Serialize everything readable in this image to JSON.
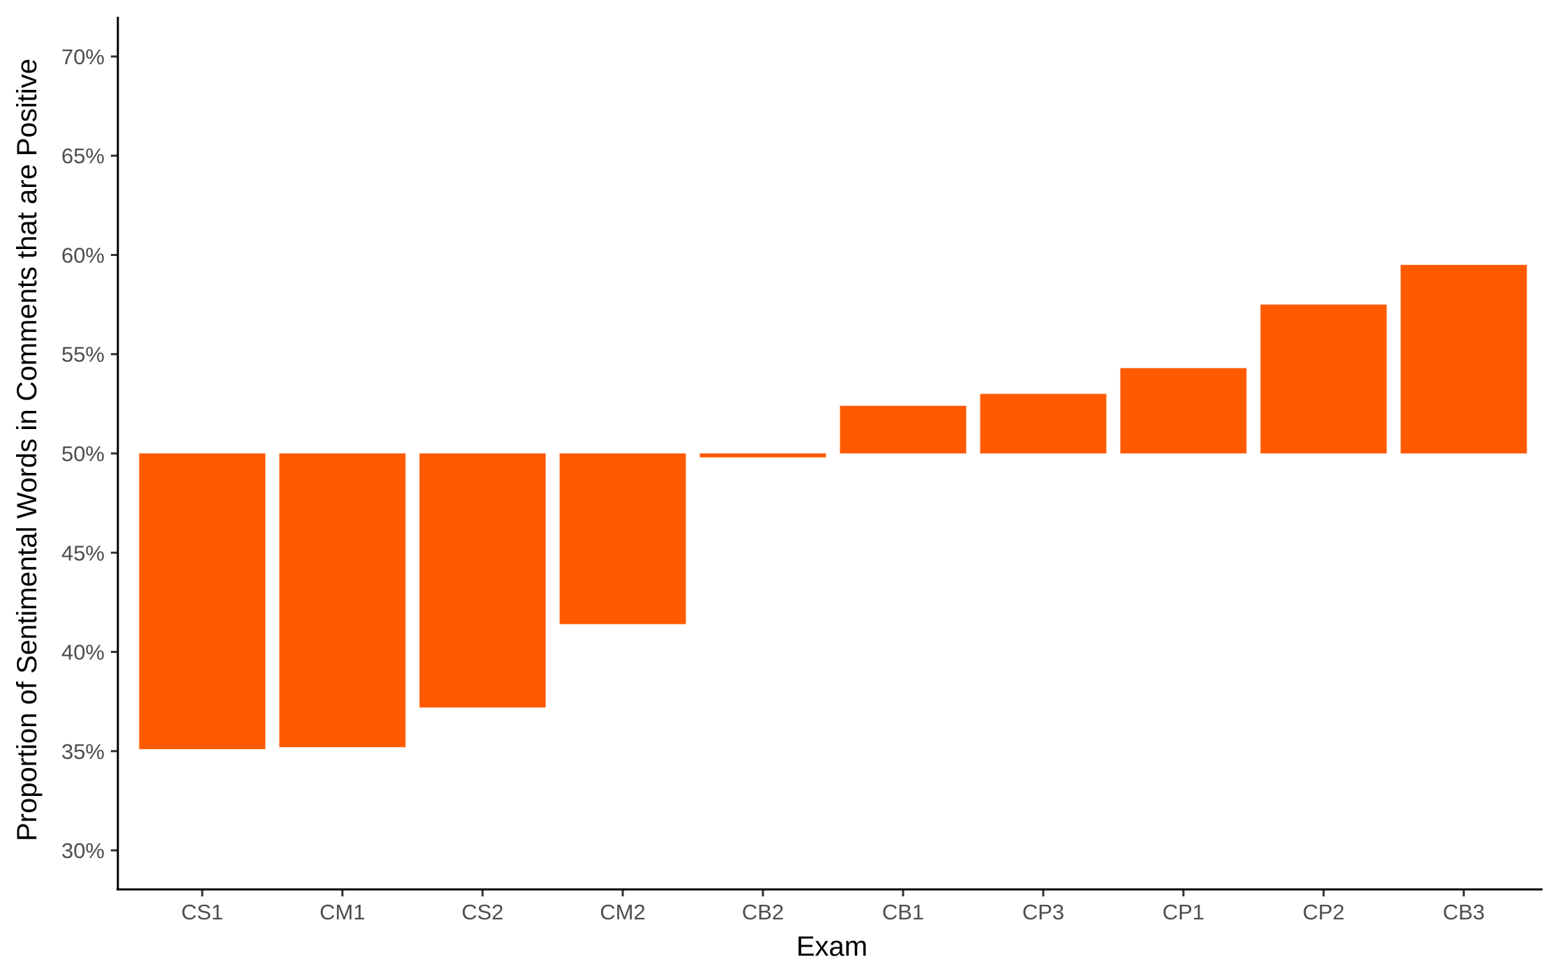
{
  "chart_data": {
    "type": "bar",
    "title": "",
    "xlabel": "Exam",
    "ylabel": "Proportion of Sentimental Words in Comments that are Positive",
    "baseline": 0.5,
    "ylim": [
      0.28,
      0.72
    ],
    "yticks": [
      0.3,
      0.35,
      0.4,
      0.45,
      0.5,
      0.55,
      0.6,
      0.65,
      0.7
    ],
    "ytick_labels": [
      "30%",
      "35%",
      "40%",
      "45%",
      "50%",
      "55%",
      "60%",
      "65%",
      "70%"
    ],
    "categories": [
      "CS1",
      "CM1",
      "CS2",
      "CM2",
      "CB2",
      "CB1",
      "CP3",
      "CP1",
      "CP2",
      "CB3"
    ],
    "values": [
      0.351,
      0.352,
      0.372,
      0.414,
      0.498,
      0.524,
      0.53,
      0.543,
      0.575,
      0.595
    ],
    "bar_color": "#FF5A00",
    "grid": false,
    "legend": "none"
  }
}
